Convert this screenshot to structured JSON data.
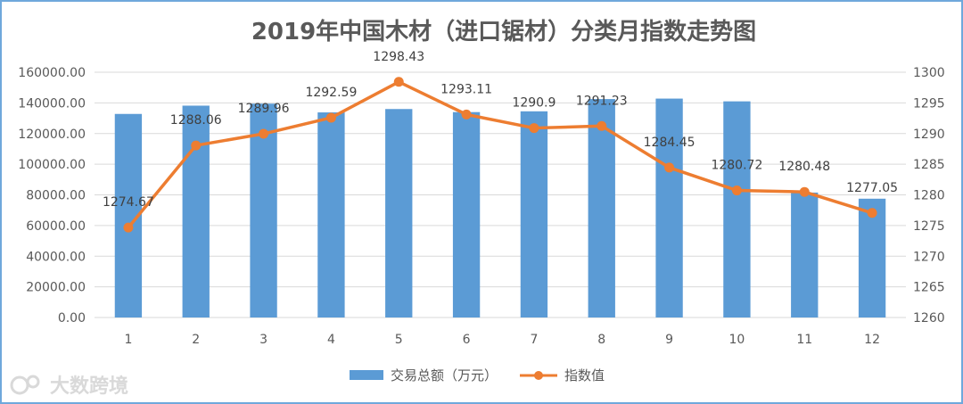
{
  "chart_data": {
    "type": "bar",
    "title": "2019年中国木材（进口锯材）分类月指数走势图",
    "categories": [
      "1",
      "2",
      "3",
      "4",
      "5",
      "6",
      "7",
      "8",
      "9",
      "10",
      "11",
      "12"
    ],
    "series": [
      {
        "name": "交易总额（万元）",
        "type": "bar",
        "axis": "left",
        "color": "#5b9bd5",
        "values": [
          132800,
          138200,
          139500,
          133800,
          136000,
          134000,
          134500,
          142500,
          142800,
          141000,
          81500,
          77500
        ]
      },
      {
        "name": "指数值",
        "type": "line",
        "axis": "right",
        "color": "#ed7d31",
        "values": [
          1274.67,
          1288.06,
          1289.96,
          1292.59,
          1298.43,
          1293.11,
          1290.9,
          1291.23,
          1284.45,
          1280.72,
          1280.48,
          1277.05
        ],
        "labels": [
          "1274.67",
          "1288.06",
          "1289.96",
          "1292.59",
          "1298.43",
          "1293.11",
          "1290.9",
          "1291.23",
          "1284.45",
          "1280.72",
          "1280.48",
          "1277.05"
        ]
      }
    ],
    "y_left": {
      "lim": [
        0,
        160000
      ],
      "ticks": [
        0,
        20000,
        40000,
        60000,
        80000,
        100000,
        120000,
        140000,
        160000
      ],
      "tick_labels": [
        "0.00",
        "20000.00",
        "40000.00",
        "60000.00",
        "80000.00",
        "100000.00",
        "120000.00",
        "140000.00",
        "160000.00"
      ]
    },
    "y_right": {
      "lim": [
        1260,
        1300
      ],
      "ticks": [
        1260,
        1265,
        1270,
        1275,
        1280,
        1285,
        1290,
        1295,
        1300
      ],
      "tick_labels": [
        "1260",
        "1265",
        "1270",
        "1275",
        "1280",
        "1285",
        "1290",
        "1295",
        "1300"
      ]
    },
    "grid": true,
    "legend": "bottom"
  },
  "watermark": {
    "text": "大数跨境",
    "icon": "logo-icon"
  }
}
